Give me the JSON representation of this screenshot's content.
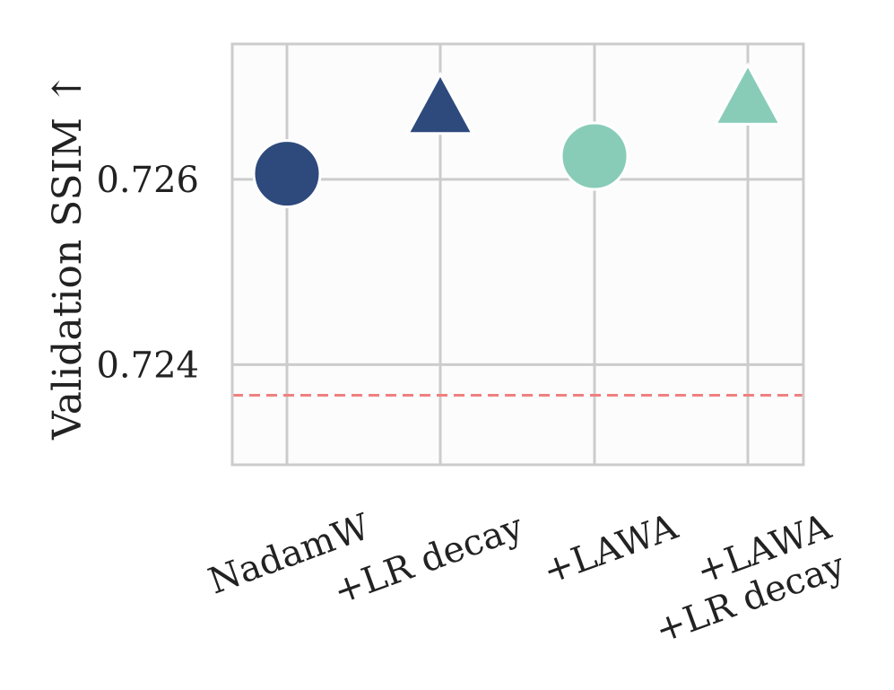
{
  "chart_data": {
    "type": "scatter",
    "title": "",
    "xlabel": "",
    "ylabel": "Validation SSIM ↑",
    "categories": [
      [
        "NadamW"
      ],
      [
        "+LR decay"
      ],
      [
        "+LAWA"
      ],
      [
        "+LAWA",
        "+LR decay"
      ]
    ],
    "points": [
      {
        "category": 0,
        "value": 0.72606,
        "marker": "circle",
        "color": "#2e4a7d"
      },
      {
        "category": 1,
        "value": 0.72675,
        "marker": "triangle",
        "color": "#2e4a7d"
      },
      {
        "category": 2,
        "value": 0.72625,
        "marker": "circle",
        "color": "#88ccb8"
      },
      {
        "category": 3,
        "value": 0.72685,
        "marker": "triangle",
        "color": "#88ccb8"
      }
    ],
    "reference_line": {
      "value": 0.72367,
      "color": "#f08080",
      "style": "dashed"
    },
    "yticks": [
      0.724,
      0.726
    ],
    "ytick_labels": [
      "0.724",
      "0.726"
    ],
    "ylim": [
      0.72292,
      0.72746
    ],
    "grid": true,
    "legend": "none"
  }
}
